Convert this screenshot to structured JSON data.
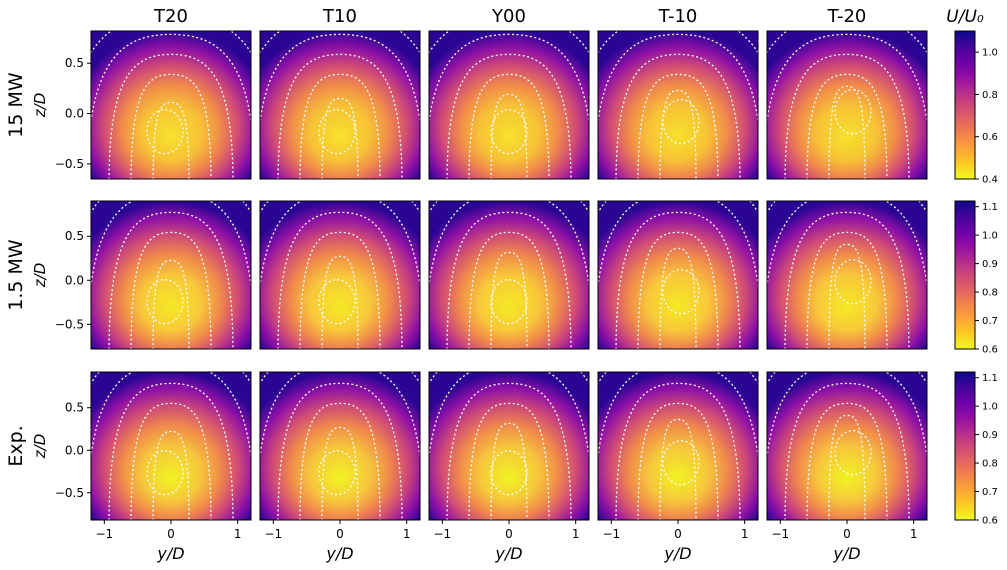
{
  "chart_data": {
    "type": "heatmap",
    "figure": "wake velocity contour grid",
    "columns": [
      "T20",
      "T10",
      "Y00",
      "T-10",
      "T-20"
    ],
    "rows": [
      {
        "label": "15 MW",
        "ylabel": "z/D",
        "yticks": [
          -0.5,
          0.0,
          0.5
        ],
        "ytick_labels": [
          "−0.5",
          "0.0",
          "0.5"
        ],
        "ylim": [
          -0.65,
          0.82
        ],
        "colorbar": {
          "range": [
            0.4,
            1.1
          ],
          "ticks": [
            0.4,
            0.6,
            0.8,
            1.0
          ],
          "tick_labels": [
            "0.4",
            "0.6",
            "0.8",
            "1.0"
          ]
        }
      },
      {
        "label": "1.5 MW",
        "ylabel": "z/D",
        "yticks": [
          -0.5,
          0.0,
          0.5
        ],
        "ytick_labels": [
          "−0.5",
          "0.0",
          "0.5"
        ],
        "ylim": [
          -0.78,
          0.9
        ],
        "colorbar": {
          "range": [
            0.6,
            1.12
          ],
          "ticks": [
            0.6,
            0.7,
            0.8,
            0.9,
            1.0,
            1.1
          ],
          "tick_labels": [
            "0.6",
            "0.7",
            "0.8",
            "0.9",
            "1.0",
            "1.1"
          ]
        }
      },
      {
        "label": "Exp.",
        "ylabel": "z/D",
        "yticks": [
          -0.5,
          0.0,
          0.5
        ],
        "ytick_labels": [
          "−0.5",
          "0.0",
          "0.5"
        ],
        "ylim": [
          -0.82,
          0.92
        ],
        "colorbar": {
          "range": [
            0.6,
            1.12
          ],
          "ticks": [
            0.6,
            0.7,
            0.8,
            0.9,
            1.0,
            1.1
          ],
          "tick_labels": [
            "0.6",
            "0.7",
            "0.8",
            "0.9",
            "1.0",
            "1.1"
          ]
        }
      }
    ],
    "xlabel": "y/D",
    "xticks": [
      -1,
      0,
      1
    ],
    "xtick_labels": [
      "−1",
      "0",
      "1"
    ],
    "xlim": [
      -1.2,
      1.2
    ],
    "colorbar_label": "U/U₀",
    "colormap": "plasma_r",
    "contour_style": "white dotted"
  }
}
